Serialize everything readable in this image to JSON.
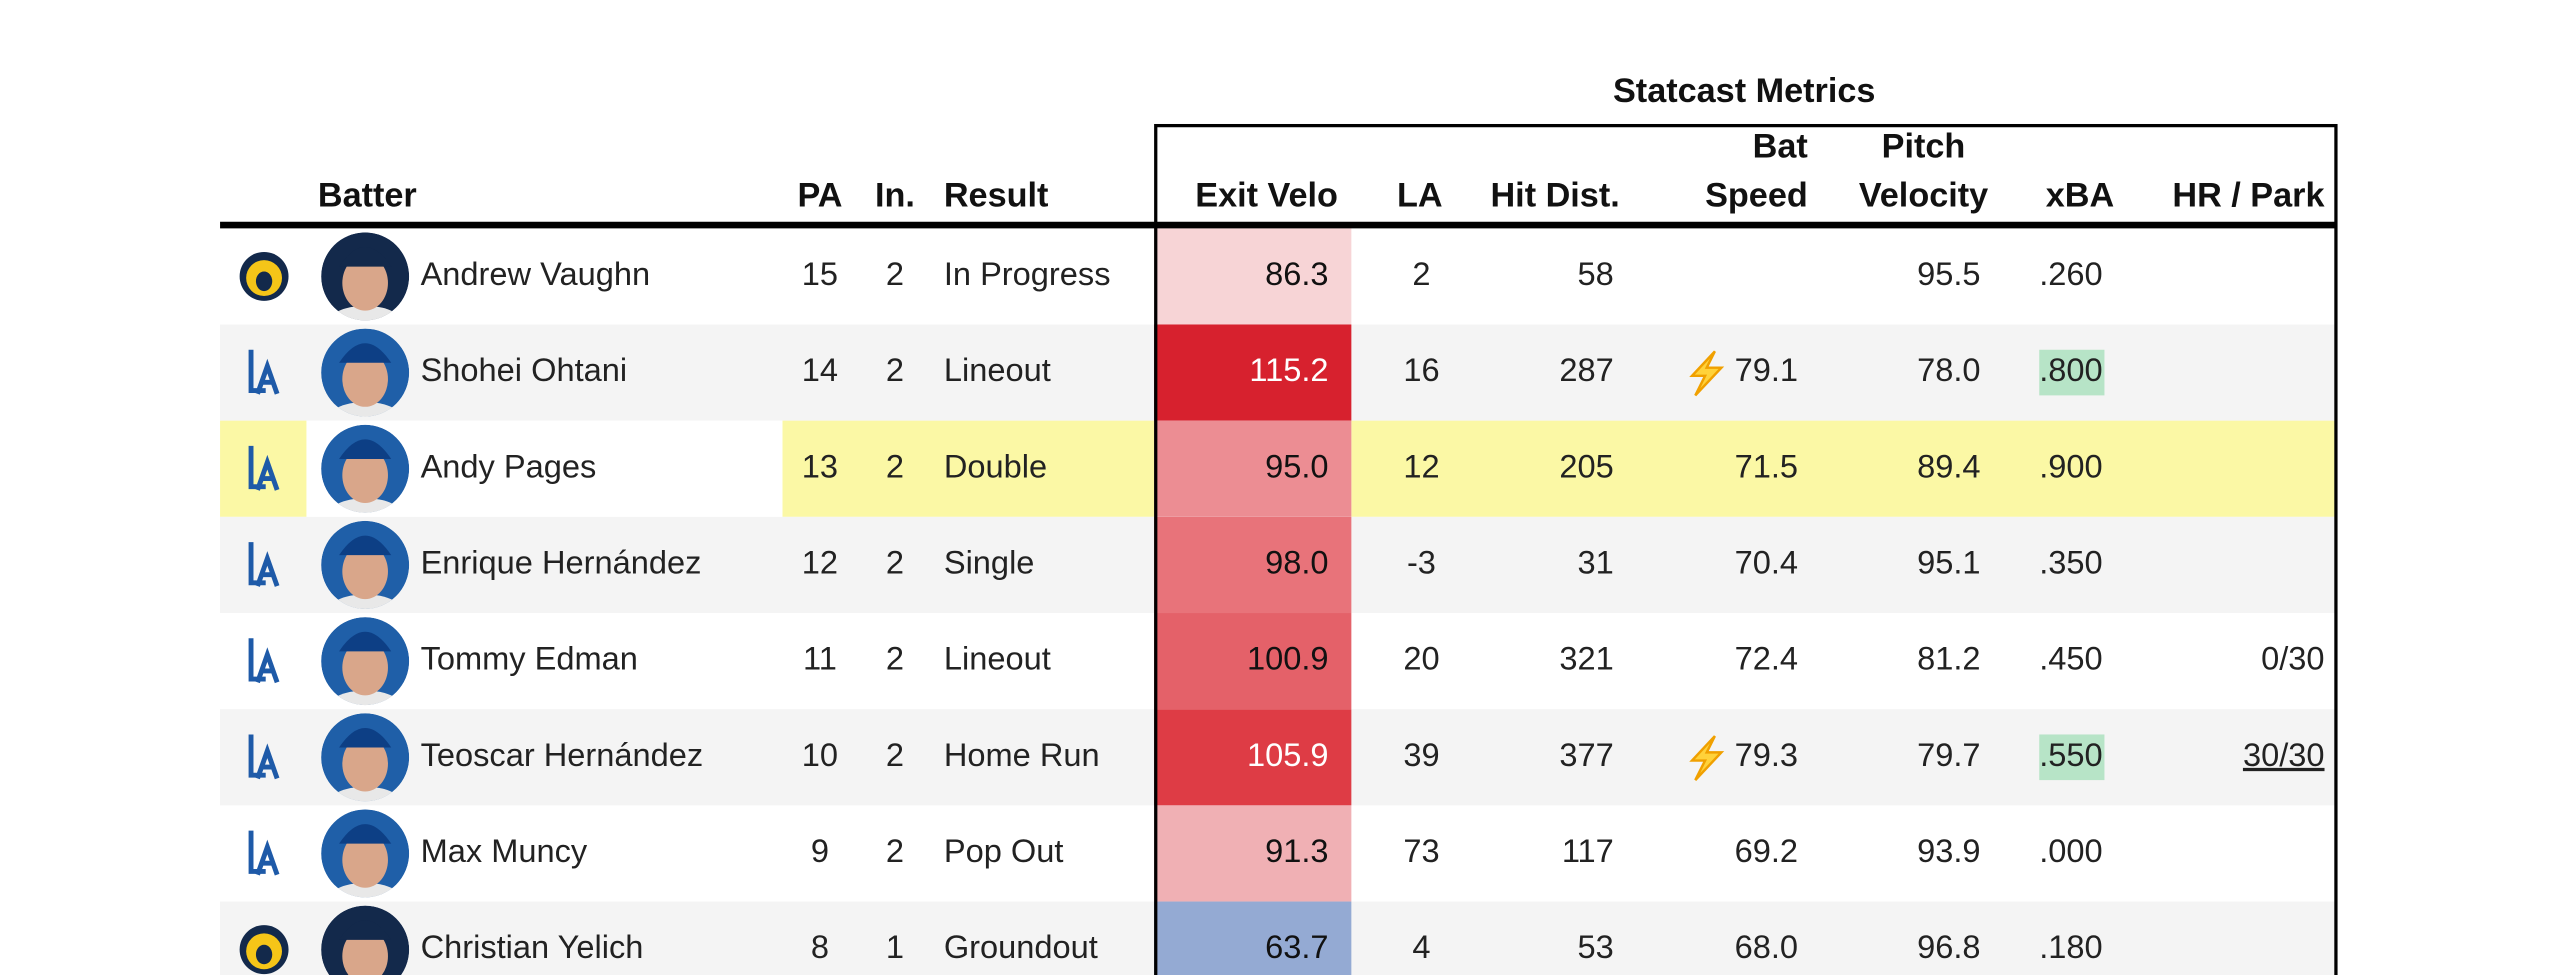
{
  "header": {
    "group_title": "Statcast Metrics",
    "columns": {
      "batter": "Batter",
      "pa": "PA",
      "inning": "In.",
      "result": "Result",
      "exit_velo": "Exit Velo",
      "la": "LA",
      "hit_dist": "Hit Dist.",
      "bat_speed": [
        "Bat",
        "Speed"
      ],
      "pitch_velocity": [
        "Pitch",
        "Velocity"
      ],
      "xba": "xBA",
      "hr_park": "HR / Park"
    }
  },
  "table": {
    "rows": [
      {
        "logo": "brewers",
        "batter": "Andrew Vaughn",
        "pa": 15,
        "inning": 2,
        "result": "In Progress",
        "exit_velo": "86.3",
        "exit_velo_color": "#f7d4d6",
        "exit_velo_text_color": "#111111",
        "la": 2,
        "hit_dist": 58,
        "bat_speed": null,
        "pitch_velocity": "95.5",
        "xba": ".260",
        "hr_park": null
      },
      {
        "logo": "dodgers",
        "batter": "Shohei Ohtani",
        "pa": 14,
        "inning": 2,
        "result": "Lineout",
        "exit_velo": "115.2",
        "exit_velo_color": "#d7212e",
        "exit_velo_text_color": "#ffffff",
        "la": 16,
        "hit_dist": 287,
        "bat_speed": "79.1",
        "fast_swing": true,
        "pitch_velocity": "78.0",
        "xba": ".800",
        "xba_highlight": true,
        "hr_park": null
      },
      {
        "logo": "dodgers",
        "batter": "Andy Pages",
        "pa": 13,
        "inning": 2,
        "result": "Double",
        "exit_velo": "95.0",
        "exit_velo_color": "#ec8d93",
        "exit_velo_text_color": "#111111",
        "la": 12,
        "hit_dist": 205,
        "bat_speed": "71.5",
        "pitch_velocity": "89.4",
        "xba": ".900",
        "hr_park": null,
        "highlight": true
      },
      {
        "logo": "dodgers",
        "batter": "Enrique Hernández",
        "pa": 12,
        "inning": 2,
        "result": "Single",
        "exit_velo": "98.0",
        "exit_velo_color": "#e8737a",
        "exit_velo_text_color": "#111111",
        "la": -3,
        "hit_dist": 31,
        "bat_speed": "70.4",
        "pitch_velocity": "95.1",
        "xba": ".350",
        "hr_park": null
      },
      {
        "logo": "dodgers",
        "batter": "Tommy Edman",
        "pa": 11,
        "inning": 2,
        "result": "Lineout",
        "exit_velo": "100.9",
        "exit_velo_color": "#e46169",
        "exit_velo_text_color": "#111111",
        "la": 20,
        "hit_dist": 321,
        "bat_speed": "72.4",
        "pitch_velocity": "81.2",
        "xba": ".450",
        "hr_park": "0/30"
      },
      {
        "logo": "dodgers",
        "batter": "Teoscar Hernández",
        "pa": 10,
        "inning": 2,
        "result": "Home Run",
        "exit_velo": "105.9",
        "exit_velo_color": "#de3c45",
        "exit_velo_text_color": "#ffffff",
        "la": 39,
        "hit_dist": 377,
        "bat_speed": "79.3",
        "fast_swing": true,
        "pitch_velocity": "79.7",
        "xba": ".550",
        "xba_highlight": true,
        "hr_park": "30/30",
        "hr_underline": true
      },
      {
        "logo": "dodgers",
        "batter": "Max Muncy",
        "pa": 9,
        "inning": 2,
        "result": "Pop Out",
        "exit_velo": "91.3",
        "exit_velo_color": "#f0b0b4",
        "exit_velo_text_color": "#111111",
        "la": 73,
        "hit_dist": 117,
        "bat_speed": "69.2",
        "pitch_velocity": "93.9",
        "xba": ".000",
        "hr_park": null
      },
      {
        "logo": "brewers",
        "batter": "Christian Yelich",
        "pa": 8,
        "inning": 1,
        "result": "Groundout",
        "exit_velo": "63.7",
        "exit_velo_color": "#94aad3",
        "exit_velo_text_color": "#111111",
        "la": 4,
        "hit_dist": 53,
        "bat_speed": "68.0",
        "pitch_velocity": "96.8",
        "xba": ".180",
        "hr_park": null
      }
    ]
  }
}
